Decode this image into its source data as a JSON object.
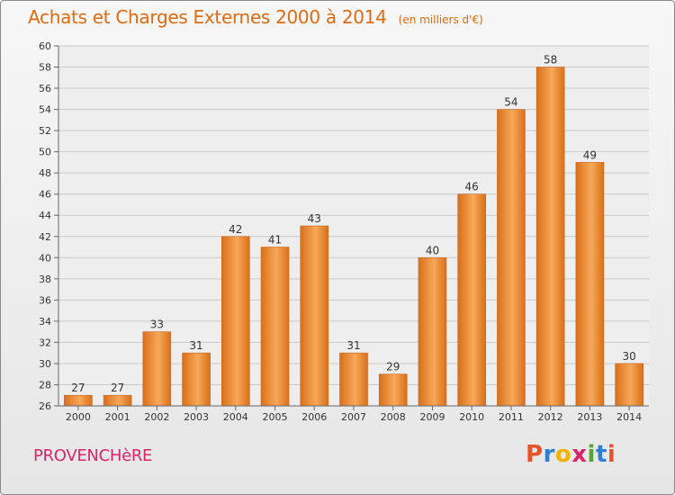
{
  "header": {
    "title": "Achats et Charges Externes 2000 à 2014",
    "unit": "(en milliers d'€)"
  },
  "footer": {
    "town": "PROVENCHèRE",
    "logo_text": "Proxiti"
  },
  "colors": {
    "bar_light": "#f7a85a",
    "bar_dark": "#d8701a",
    "title": "#e06a10",
    "town": "#d9256a"
  },
  "chart_data": {
    "type": "bar",
    "title": "Achats et Charges Externes 2000 à 2014",
    "categories": [
      "2000",
      "2001",
      "2002",
      "2003",
      "2004",
      "2005",
      "2006",
      "2007",
      "2008",
      "2009",
      "2010",
      "2011",
      "2012",
      "2013",
      "2014"
    ],
    "values": [
      27,
      27,
      33,
      31,
      42,
      41,
      43,
      31,
      29,
      40,
      46,
      54,
      58,
      49,
      30
    ],
    "ylim": [
      26,
      60
    ],
    "yticks": [
      26,
      28,
      30,
      32,
      34,
      36,
      38,
      40,
      42,
      44,
      46,
      48,
      50,
      52,
      54,
      56,
      58,
      60
    ],
    "grid": true,
    "xlabel": "",
    "ylabel": ""
  }
}
